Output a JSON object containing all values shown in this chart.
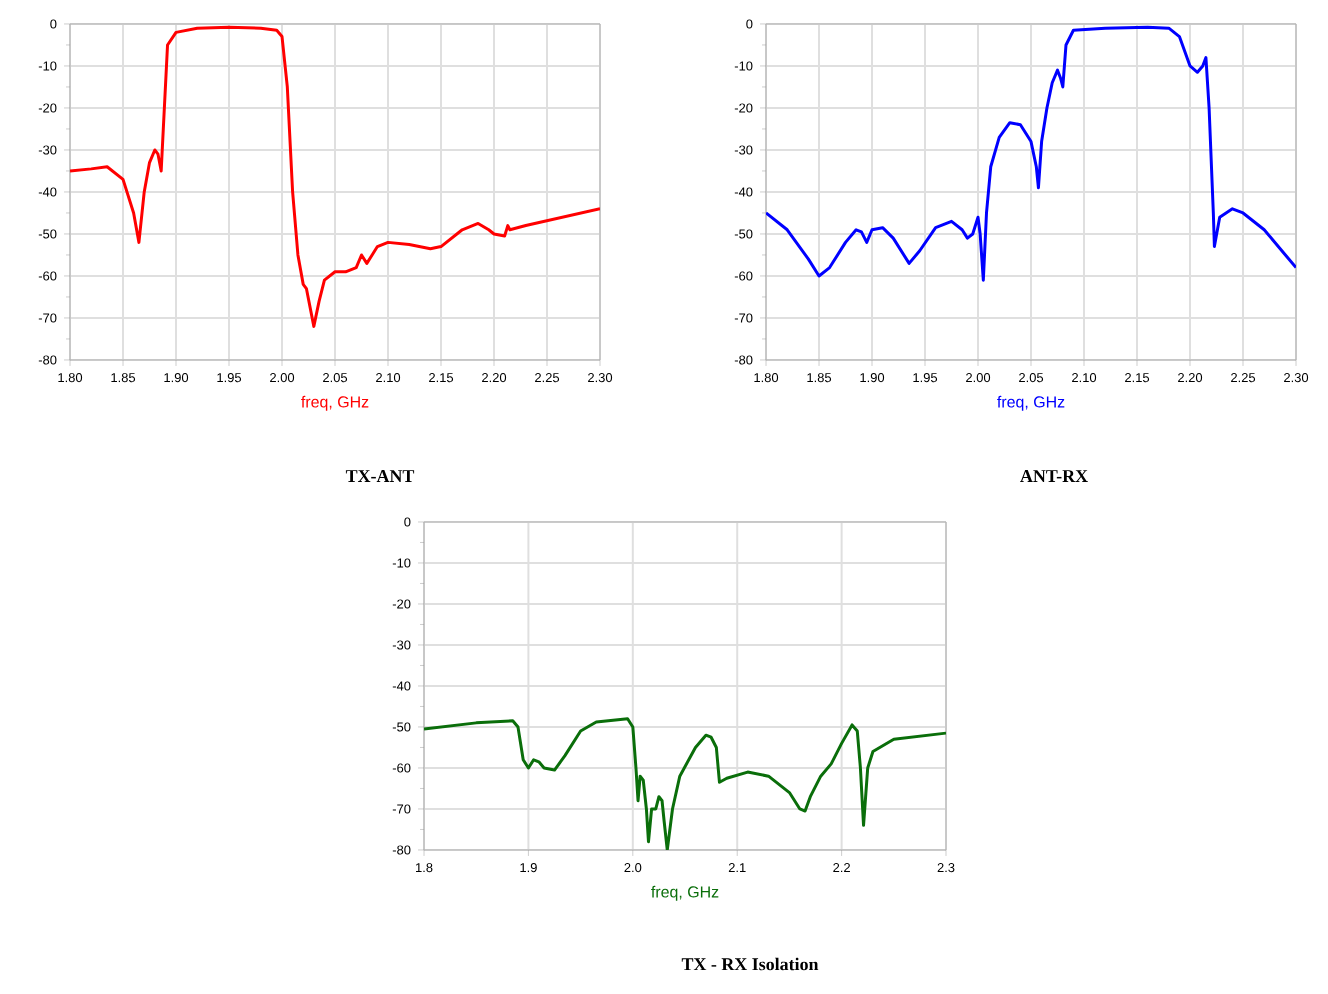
{
  "chart_data": [
    {
      "type": "line",
      "title": "TX-ANT",
      "xlabel": "freq, GHz",
      "xlim": [
        1.8,
        2.3
      ],
      "ylim": [
        -80,
        0
      ],
      "grid": true,
      "marker": "none",
      "line_style": "solid",
      "xticks": [
        {
          "value": 1.8,
          "label": "1.80"
        },
        {
          "value": 1.85,
          "label": "1.85"
        },
        {
          "value": 1.9,
          "label": "1.90"
        },
        {
          "value": 1.95,
          "label": "1.95"
        },
        {
          "value": 2.0,
          "label": "2.00"
        },
        {
          "value": 2.05,
          "label": "2.05"
        },
        {
          "value": 2.1,
          "label": "2.10"
        },
        {
          "value": 2.15,
          "label": "2.15"
        },
        {
          "value": 2.2,
          "label": "2.20"
        },
        {
          "value": 2.25,
          "label": "2.25"
        },
        {
          "value": 2.3,
          "label": "2.30"
        }
      ],
      "yticks": [
        0,
        -10,
        -20,
        -30,
        -40,
        -50,
        -60,
        -70,
        -80
      ],
      "series": [
        {
          "color": "#ff0000",
          "x": [
            1.8,
            1.82,
            1.835,
            1.85,
            1.86,
            1.865,
            1.87,
            1.875,
            1.88,
            1.883,
            1.886,
            1.888,
            1.892,
            1.9,
            1.92,
            1.95,
            1.98,
            1.995,
            2.0,
            2.005,
            2.01,
            2.015,
            2.02,
            2.023,
            2.03,
            2.035,
            2.04,
            2.05,
            2.06,
            2.07,
            2.075,
            2.08,
            2.085,
            2.09,
            2.1,
            2.12,
            2.14,
            2.15,
            2.17,
            2.185,
            2.195,
            2.2,
            2.21,
            2.213,
            2.215,
            2.23,
            2.3
          ],
          "values": [
            -35,
            -34.5,
            -34,
            -37,
            -45,
            -52,
            -40,
            -33,
            -30,
            -31,
            -35,
            -25,
            -5,
            -2,
            -1,
            -0.8,
            -1,
            -1.5,
            -3,
            -15,
            -40,
            -55,
            -62,
            -63,
            -72,
            -66,
            -61,
            -59,
            -59,
            -58,
            -55,
            -57,
            -55,
            -53,
            -52,
            -52.5,
            -53.5,
            -53,
            -49,
            -47.5,
            -49,
            -50,
            -50.5,
            -48,
            -49,
            -48,
            -44
          ]
        }
      ]
    },
    {
      "type": "line",
      "title": "ANT-RX",
      "xlabel": "freq, GHz",
      "xlim": [
        1.8,
        2.3
      ],
      "ylim": [
        -80,
        0
      ],
      "grid": true,
      "marker": "none",
      "line_style": "solid",
      "xticks": [
        {
          "value": 1.8,
          "label": "1.80"
        },
        {
          "value": 1.85,
          "label": "1.85"
        },
        {
          "value": 1.9,
          "label": "1.90"
        },
        {
          "value": 1.95,
          "label": "1.95"
        },
        {
          "value": 2.0,
          "label": "2.00"
        },
        {
          "value": 2.05,
          "label": "2.05"
        },
        {
          "value": 2.1,
          "label": "2.10"
        },
        {
          "value": 2.15,
          "label": "2.15"
        },
        {
          "value": 2.2,
          "label": "2.20"
        },
        {
          "value": 2.25,
          "label": "2.25"
        },
        {
          "value": 2.3,
          "label": "2.30"
        }
      ],
      "yticks": [
        0,
        -10,
        -20,
        -30,
        -40,
        -50,
        -60,
        -70,
        -80
      ],
      "series": [
        {
          "color": "#0000ff",
          "x": [
            1.8,
            1.82,
            1.84,
            1.85,
            1.86,
            1.875,
            1.885,
            1.89,
            1.895,
            1.9,
            1.91,
            1.92,
            1.935,
            1.945,
            1.96,
            1.975,
            1.985,
            1.99,
            1.995,
            2.0,
            2.002,
            2.005,
            2.008,
            2.012,
            2.02,
            2.03,
            2.04,
            2.05,
            2.055,
            2.057,
            2.06,
            2.065,
            2.07,
            2.075,
            2.078,
            2.08,
            2.083,
            2.09,
            2.12,
            2.16,
            2.18,
            2.19,
            2.2,
            2.207,
            2.212,
            2.215,
            2.218,
            2.222,
            2.223,
            2.228,
            2.24,
            2.25,
            2.27,
            2.29,
            2.3
          ],
          "values": [
            -45,
            -49,
            -56,
            -60,
            -58,
            -52,
            -49,
            -49.5,
            -52,
            -49,
            -48.5,
            -51,
            -57,
            -54,
            -48.5,
            -47,
            -49,
            -51,
            -50,
            -46,
            -50,
            -61,
            -45,
            -34,
            -27,
            -23.5,
            -24,
            -28,
            -34,
            -39,
            -28,
            -20,
            -14,
            -11,
            -13,
            -15,
            -5,
            -1.5,
            -1,
            -0.8,
            -1,
            -3,
            -10,
            -11.5,
            -10,
            -8,
            -20,
            -45,
            -53,
            -46,
            -44,
            -45,
            -49,
            -55,
            -58
          ]
        }
      ]
    },
    {
      "type": "line",
      "title": "TX - RX Isolation",
      "xlabel": "freq, GHz",
      "xlim": [
        1.8,
        2.3
      ],
      "ylim": [
        -80,
        0
      ],
      "grid": true,
      "marker": "none",
      "line_style": "solid",
      "xticks": [
        1.8,
        1.9,
        {
          "value": 2.0,
          "label": "2.0"
        },
        2.1,
        2.2,
        2.3
      ],
      "yticks": [
        0,
        -10,
        -20,
        -30,
        -40,
        -50,
        -60,
        -70,
        -80
      ],
      "series": [
        {
          "color": "#0a6e0a",
          "x": [
            1.8,
            1.85,
            1.885,
            1.89,
            1.895,
            1.9,
            1.905,
            1.91,
            1.915,
            1.925,
            1.935,
            1.95,
            1.965,
            1.995,
            2.0,
            2.003,
            2.005,
            2.007,
            2.01,
            2.013,
            2.015,
            2.018,
            2.022,
            2.025,
            2.028,
            2.03,
            2.033,
            2.038,
            2.045,
            2.06,
            2.07,
            2.075,
            2.08,
            2.083,
            2.09,
            2.11,
            2.13,
            2.15,
            2.16,
            2.165,
            2.17,
            2.18,
            2.19,
            2.2,
            2.21,
            2.215,
            2.218,
            2.221,
            2.225,
            2.23,
            2.25,
            2.3
          ],
          "values": [
            -50.5,
            -49,
            -48.5,
            -50,
            -58,
            -60,
            -58,
            -58.5,
            -60,
            -60.5,
            -57,
            -51,
            -48.8,
            -48,
            -50,
            -60,
            -68,
            -62,
            -63,
            -70,
            -78,
            -70,
            -70,
            -67,
            -68,
            -73,
            -80,
            -70,
            -62,
            -55,
            -52,
            -52.5,
            -55,
            -63.5,
            -62.5,
            -61,
            -62,
            -66,
            -70,
            -70.5,
            -67,
            -62,
            -59,
            -54,
            -49.5,
            -51,
            -60,
            -74,
            -60,
            -56,
            -53,
            -51.5
          ]
        }
      ]
    }
  ]
}
